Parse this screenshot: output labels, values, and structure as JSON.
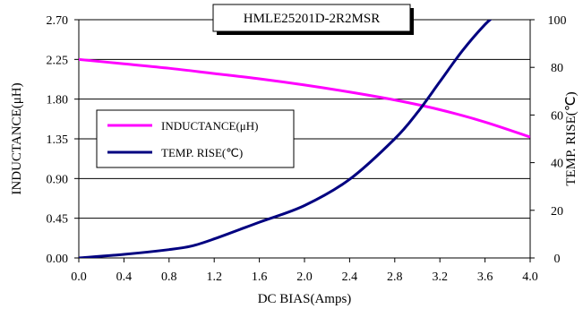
{
  "chart_data": {
    "type": "line",
    "title": "HMLE25201D-2R2MSR",
    "xlabel": "DC BIAS(Amps)",
    "ylabel": "INDUCTANCE(μH)",
    "y2label": "TEMP. RISE(℃)",
    "xlim": [
      0.0,
      4.0
    ],
    "ylim": [
      0.0,
      2.7
    ],
    "y2lim": [
      0,
      100
    ],
    "x_ticks": [
      "0.0",
      "0.4",
      "0.8",
      "1.2",
      "1.6",
      "2.0",
      "2.4",
      "2.8",
      "3.2",
      "3.6",
      "4.0"
    ],
    "y_ticks": [
      "0.00",
      "0.45",
      "0.90",
      "1.35",
      "1.80",
      "2.25",
      "2.70"
    ],
    "y2_ticks": [
      "0",
      "20",
      "40",
      "60",
      "80",
      "100"
    ],
    "grid": "horizontal",
    "legend_position": "middle-left",
    "series": [
      {
        "name": "INDUCTANCE(μH)",
        "axis": "left",
        "color": "#ff00ff",
        "x": [
          0.0,
          0.4,
          0.8,
          1.2,
          1.6,
          2.0,
          2.4,
          2.8,
          3.2,
          3.6,
          4.0
        ],
        "y": [
          2.25,
          2.2,
          2.15,
          2.09,
          2.03,
          1.96,
          1.88,
          1.79,
          1.68,
          1.54,
          1.37
        ]
      },
      {
        "name": "TEMP. RISE(℃)",
        "axis": "right",
        "color": "#000080",
        "x": [
          0.0,
          0.4,
          0.8,
          1.0,
          1.2,
          1.6,
          2.0,
          2.4,
          2.8,
          3.0,
          3.2,
          3.4,
          3.6,
          3.7
        ],
        "y": [
          0,
          1.5,
          3.5,
          5,
          8,
          15,
          22,
          33,
          50,
          61,
          74,
          87,
          98,
          102
        ]
      }
    ]
  }
}
